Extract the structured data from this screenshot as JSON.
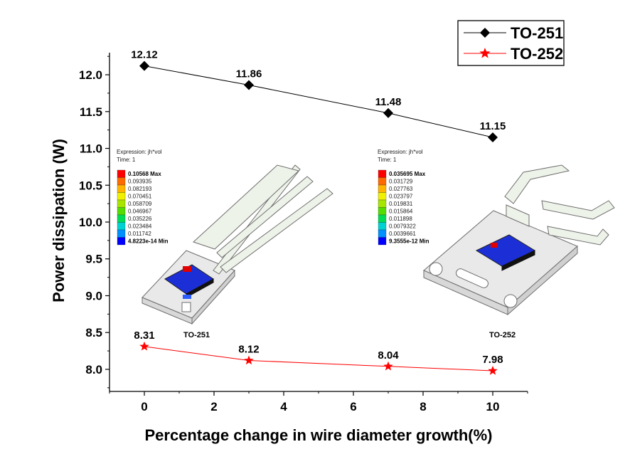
{
  "chart_data": {
    "type": "line",
    "xlabel": "Percentage change in wire diameter growth(%)",
    "ylabel": "Power dissipation (W)",
    "xlim": [
      -1,
      11
    ],
    "ylim": [
      7.7,
      12.3
    ],
    "x_ticks": [
      "0",
      "2",
      "4",
      "6",
      "8",
      "10"
    ],
    "y_ticks": [
      "8.0",
      "8.5",
      "9.0",
      "9.5",
      "10.0",
      "10.5",
      "11.0",
      "11.5",
      "12.0"
    ],
    "legend_position": "top-right",
    "grid": false,
    "series": [
      {
        "name": "TO-251",
        "color": "#000000",
        "marker": "diamond",
        "x": [
          0,
          3,
          7,
          10
        ],
        "values": [
          12.12,
          11.86,
          11.48,
          11.15
        ],
        "labels": [
          "12.12",
          "11.86",
          "11.48",
          "11.15"
        ]
      },
      {
        "name": "TO-252",
        "color": "#ff0000",
        "marker": "star",
        "x": [
          0,
          3,
          7,
          10
        ],
        "values": [
          8.31,
          8.12,
          8.04,
          7.98
        ],
        "labels": [
          "8.31",
          "8.12",
          "8.04",
          "7.98"
        ]
      }
    ]
  },
  "insets": [
    {
      "caption": "TO-251",
      "expression": "Expression: jh*vol",
      "time": "Time: 1",
      "scale": [
        "0.10568 Max",
        "0.093935",
        "0.082193",
        "0.070451",
        "0.058709",
        "0.046967",
        "0.035226",
        "0.023484",
        "0.011742",
        "4.8223e-14 Min"
      ],
      "max_tag": "Max",
      "min_tag": "Min"
    },
    {
      "caption": "TO-252",
      "expression": "Expression: jh*vol",
      "time": "Time: 1",
      "scale": [
        "0.035695 Max",
        "0.031729",
        "0.027763",
        "0.023797",
        "0.019831",
        "0.015864",
        "0.011898",
        "0.0079322",
        "0.0039661",
        "9.3555e-12 Min"
      ],
      "max_tag": "Max",
      "min_tag": "Min"
    }
  ],
  "scale_colors": [
    "#ff0000",
    "#ff6a00",
    "#ffb400",
    "#f0f000",
    "#a8e600",
    "#55dd00",
    "#00dd55",
    "#00d2d2",
    "#0090ff",
    "#0000ff"
  ]
}
